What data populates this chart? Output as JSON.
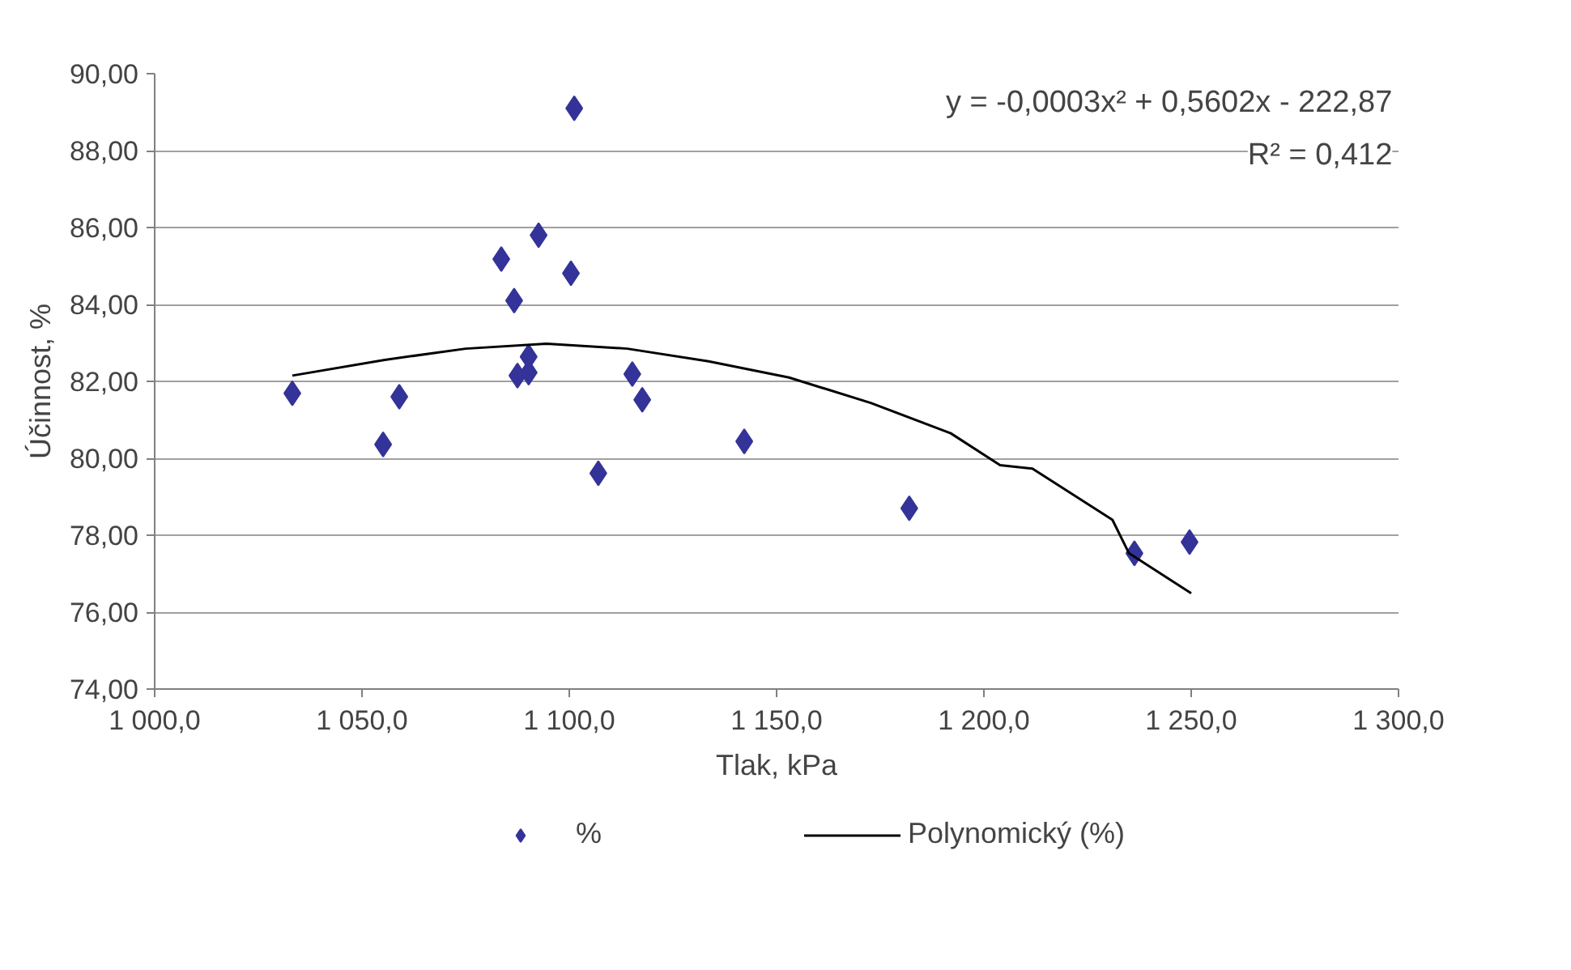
{
  "chart_data": {
    "type": "scatter",
    "xlabel": "Tlak, kPa",
    "ylabel": "Účinnost, %",
    "annotations": [
      "y = -0,0003x² + 0,5602x - 222,87",
      "R² = 0,412"
    ],
    "xlim": [
      1000,
      1300
    ],
    "ylim": [
      74,
      90
    ],
    "xticks": [
      {
        "value": 1000,
        "label": "1 000,0"
      },
      {
        "value": 1050,
        "label": "1 050,0"
      },
      {
        "value": 1100,
        "label": "1 100,0"
      },
      {
        "value": 1150,
        "label": "1 150,0"
      },
      {
        "value": 1200,
        "label": "1 200,0"
      },
      {
        "value": 1250,
        "label": "1 250,0"
      },
      {
        "value": 1300,
        "label": "1 300,0"
      }
    ],
    "yticks": [
      {
        "value": 74,
        "label": "74,00"
      },
      {
        "value": 76,
        "label": "76,00"
      },
      {
        "value": 78,
        "label": "78,00"
      },
      {
        "value": 80,
        "label": "80,00"
      },
      {
        "value": 82,
        "label": "82,00"
      },
      {
        "value": 84,
        "label": "84,00"
      },
      {
        "value": 86,
        "label": "86,00"
      },
      {
        "value": 88,
        "label": "88,00"
      },
      {
        "value": 90,
        "label": "90,00"
      }
    ],
    "grid": "y",
    "legend": "bottom",
    "series": [
      {
        "name": "%",
        "marker": "diamond",
        "color": "#333399",
        "x": [
          1033.2,
          1055.1,
          1059.0,
          1083.6,
          1086.7,
          1087.5,
          1090.2,
          1090.2,
          1092.6,
          1100.4,
          1101.2,
          1107.0,
          1115.2,
          1117.6,
          1142.2,
          1182.0,
          1236.3,
          1249.6
        ],
        "values": [
          81.69,
          80.36,
          81.6,
          85.18,
          84.1,
          82.15,
          82.23,
          82.64,
          85.8,
          84.81,
          89.1,
          79.61,
          82.19,
          81.52,
          80.44,
          78.7,
          77.53,
          77.82
        ]
      },
      {
        "name": "Polynomický (%)",
        "type": "line",
        "marker": "none",
        "color": "#000000",
        "x": [
          1033.2,
          1055.5,
          1075,
          1094.5,
          1114,
          1133.6,
          1153,
          1172.7,
          1192,
          1203.9,
          1211.7,
          1231,
          1235,
          1250
        ],
        "values": [
          82.15,
          82.56,
          82.85,
          82.98,
          82.85,
          82.52,
          82.1,
          81.44,
          80.65,
          79.82,
          79.73,
          78.4,
          77.53,
          76.49
        ]
      }
    ]
  }
}
